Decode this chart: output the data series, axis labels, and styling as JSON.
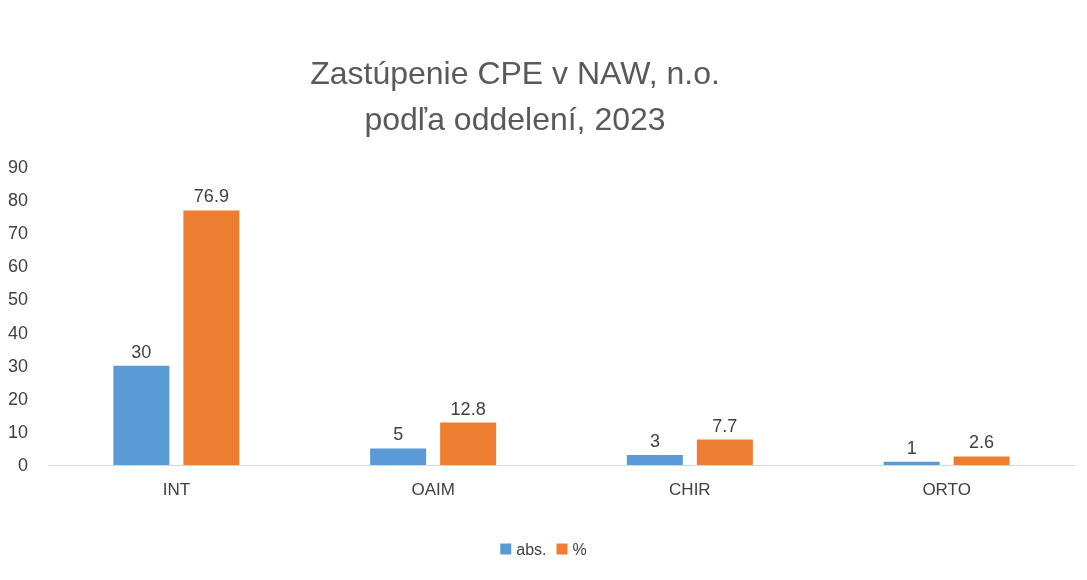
{
  "chart_data": {
    "type": "bar",
    "title": "Zastúpenie CPE v NAW, n.o.\npodľa oddelení, 2023",
    "categories": [
      "INT",
      "OAIM",
      "CHIR",
      "ORTO"
    ],
    "series": [
      {
        "name": "abs.",
        "color": "#5b9bd5",
        "values": [
          30,
          5,
          3,
          1
        ]
      },
      {
        "name": "%",
        "color": "#ed7d31",
        "values": [
          76.9,
          12.8,
          7.7,
          2.6
        ]
      }
    ],
    "ylim": [
      0,
      90
    ],
    "yticks": [
      0,
      10,
      20,
      30,
      40,
      50,
      60,
      70,
      80,
      90
    ],
    "grid": false,
    "legend": "bottom",
    "data_labels": true
  }
}
